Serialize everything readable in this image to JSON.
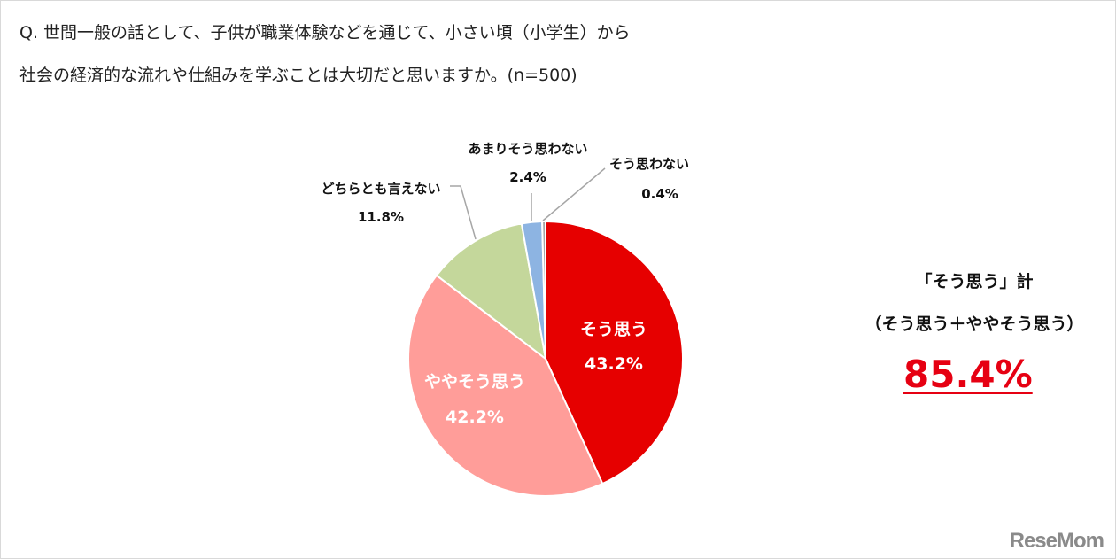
{
  "question": {
    "line1": "Q. 世間一般の話として、子供が職業体験などを通じて、小さい頃（小学生）から",
    "line2": "社会の経済的な流れや仕組みを学ぶことは大切だと思いますか。(n=500)"
  },
  "chart_data": {
    "type": "pie",
    "start": "12 o'clock, clockwise",
    "slices": [
      {
        "name": "そう思う",
        "value": 43.2,
        "label": "43.2%",
        "color": "#e60000",
        "label_inside": true
      },
      {
        "name": "ややそう思う",
        "value": 42.2,
        "label": "42.2%",
        "color": "#ff9d99",
        "label_inside": true
      },
      {
        "name": "どちらとも言えない",
        "value": 11.8,
        "label": "11.8%",
        "color": "#c4d79b",
        "label_inside": false
      },
      {
        "name": "あまりそう思わない",
        "value": 2.4,
        "label": "2.4%",
        "color": "#8db4e2",
        "label_inside": false
      },
      {
        "name": "そう思わない",
        "value": 0.4,
        "label": "0.4%",
        "color": "#a6a6a6",
        "label_inside": false
      }
    ]
  },
  "summary": {
    "title": "「そう思う」計",
    "subtitle": "（そう思う＋ややそう思う）",
    "value": "85.4%",
    "value_color": "#e60012"
  },
  "logo": "ReseMom"
}
